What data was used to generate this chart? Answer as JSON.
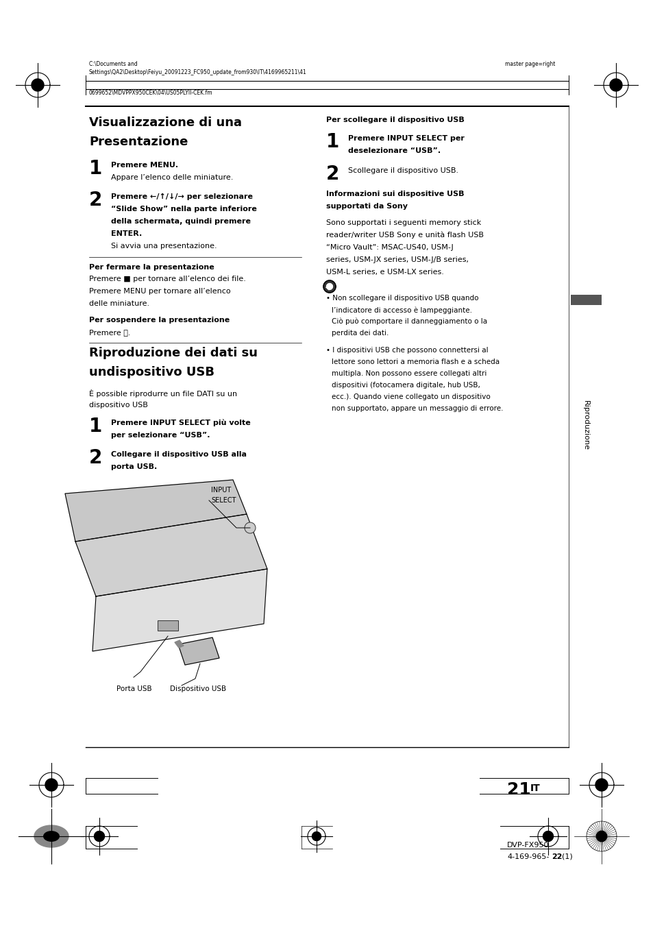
{
  "bg_color": "#ffffff",
  "page_width": 9.54,
  "page_height": 13.64,
  "header_left1": "C:\\Documents and",
  "header_left2": "Settings\\QA2\\Desktop\\Feiyu_20091223_FC950_update_from930\\IT\\4169965211\\41",
  "header_left3": "0699652\\MDVPPX950CEK\\04\\US05PLYII-CEK.fm",
  "header_right": "master page=right",
  "sidebar_text": "Riproduzione",
  "page_number_big": "21",
  "page_number_super": "IT",
  "footer_model": "DVP-FX950",
  "footer_code": "4-169-965-",
  "footer_code_bold": "22",
  "footer_code_end": "(1)"
}
